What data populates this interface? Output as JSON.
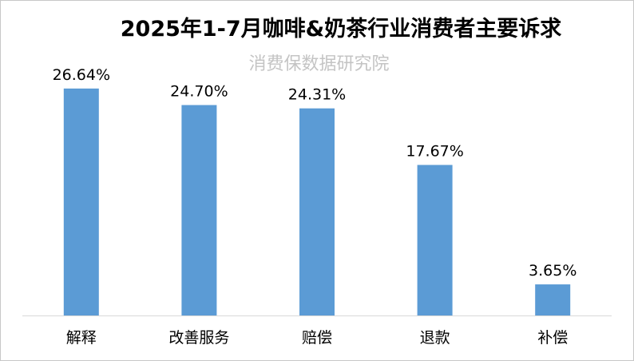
{
  "chart_data": {
    "type": "bar",
    "title": "2025年1-7月咖啡&奶茶行业消费者主要诉求",
    "watermark": "消费保数据研究院",
    "categories": [
      "解释",
      "改善服务",
      "赔偿",
      "退款",
      "补偿"
    ],
    "values": [
      26.64,
      24.7,
      24.31,
      17.67,
      3.65
    ],
    "data_labels": [
      "26.64%",
      "24.70%",
      "24.31%",
      "17.67%",
      "3.65%"
    ],
    "ylim": [
      0,
      30
    ],
    "grid": false,
    "legend": "none",
    "bar_color": "#5b9bd5",
    "axis_color": "#d9d9d9"
  }
}
